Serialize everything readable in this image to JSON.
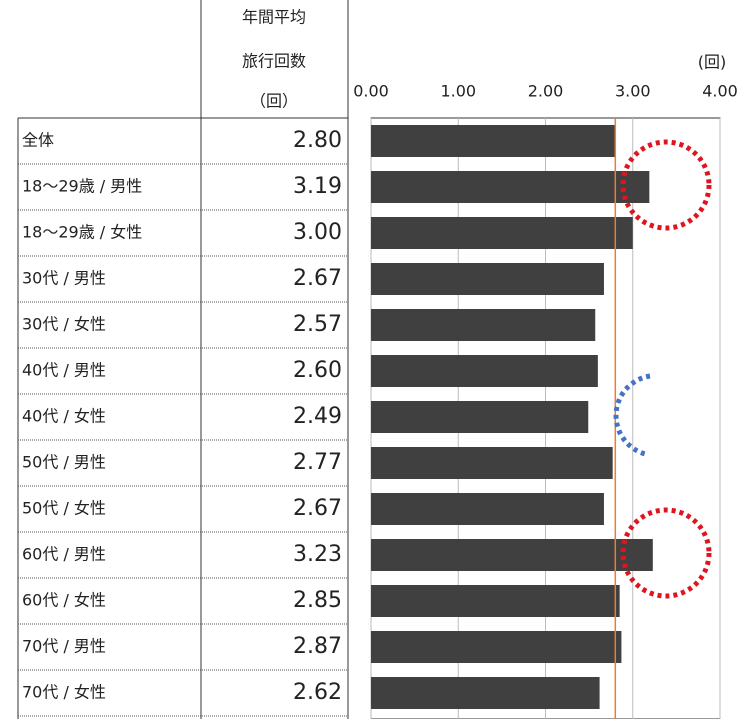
{
  "chart_data": {
    "type": "bar",
    "orientation": "horizontal",
    "column_header": [
      "年間平均",
      "旅行回数",
      "（回）"
    ],
    "unit_label": "(回)",
    "categories": [
      "全体",
      "18～29歳 / 男性",
      "18～29歳 / 女性",
      "30代 / 男性",
      "30代 / 女性",
      "40代 / 男性",
      "40代 / 女性",
      "50代 / 男性",
      "50代 / 女性",
      "60代 / 男性",
      "60代 / 女性",
      "70代 / 男性",
      "70代 / 女性"
    ],
    "values": [
      2.8,
      3.19,
      3.0,
      2.67,
      2.57,
      2.6,
      2.49,
      2.77,
      2.67,
      3.23,
      2.85,
      2.87,
      2.62
    ],
    "value_labels": [
      "2.80",
      "3.19",
      "3.00",
      "2.67",
      "2.57",
      "2.60",
      "2.49",
      "2.77",
      "2.67",
      "3.23",
      "2.85",
      "2.87",
      "2.62"
    ],
    "color": "#404040",
    "reference_color": "#ed7d31",
    "xlim": [
      0,
      4
    ],
    "xticks": [
      {
        "value": 0,
        "label": "0.00"
      },
      {
        "value": 1,
        "label": "1.00"
      },
      {
        "value": 2,
        "label": "2.00"
      },
      {
        "value": 3,
        "label": "3.00"
      },
      {
        "value": 4,
        "label": "4.00"
      }
    ],
    "grid": true
  }
}
